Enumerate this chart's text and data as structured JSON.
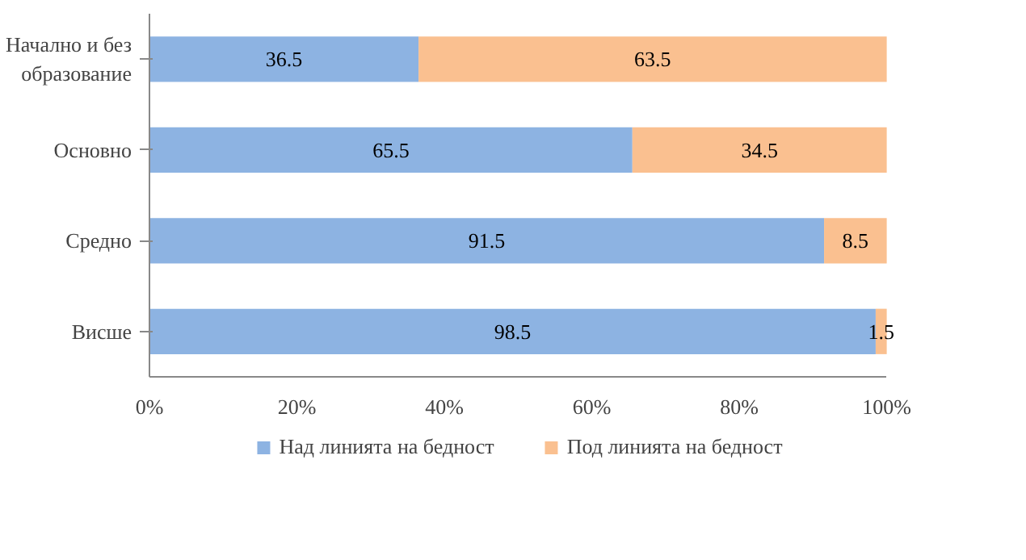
{
  "chart_data": {
    "type": "bar",
    "orientation": "horizontal",
    "stacked": true,
    "data_labels": true,
    "legend": "bottom",
    "grid": false,
    "categories": [
      "Начално и без образование",
      "Основно",
      "Средно",
      "Висше"
    ],
    "series": [
      {
        "name": "Над линията на бедност",
        "color": "#8db3e2",
        "values": [
          36.5,
          65.5,
          91.5,
          98.5
        ]
      },
      {
        "name": "Под линията на бедност",
        "color": "#fac090",
        "values": [
          63.5,
          34.5,
          8.5,
          1.5
        ]
      }
    ],
    "xlim": [
      0,
      100
    ],
    "xticks": [
      {
        "value": 0,
        "label": "0%"
      },
      {
        "value": 20,
        "label": "20%"
      },
      {
        "value": 40,
        "label": "40%"
      },
      {
        "value": 60,
        "label": "60%"
      },
      {
        "value": 80,
        "label": "80%"
      },
      {
        "value": 100,
        "label": "100%"
      }
    ]
  }
}
